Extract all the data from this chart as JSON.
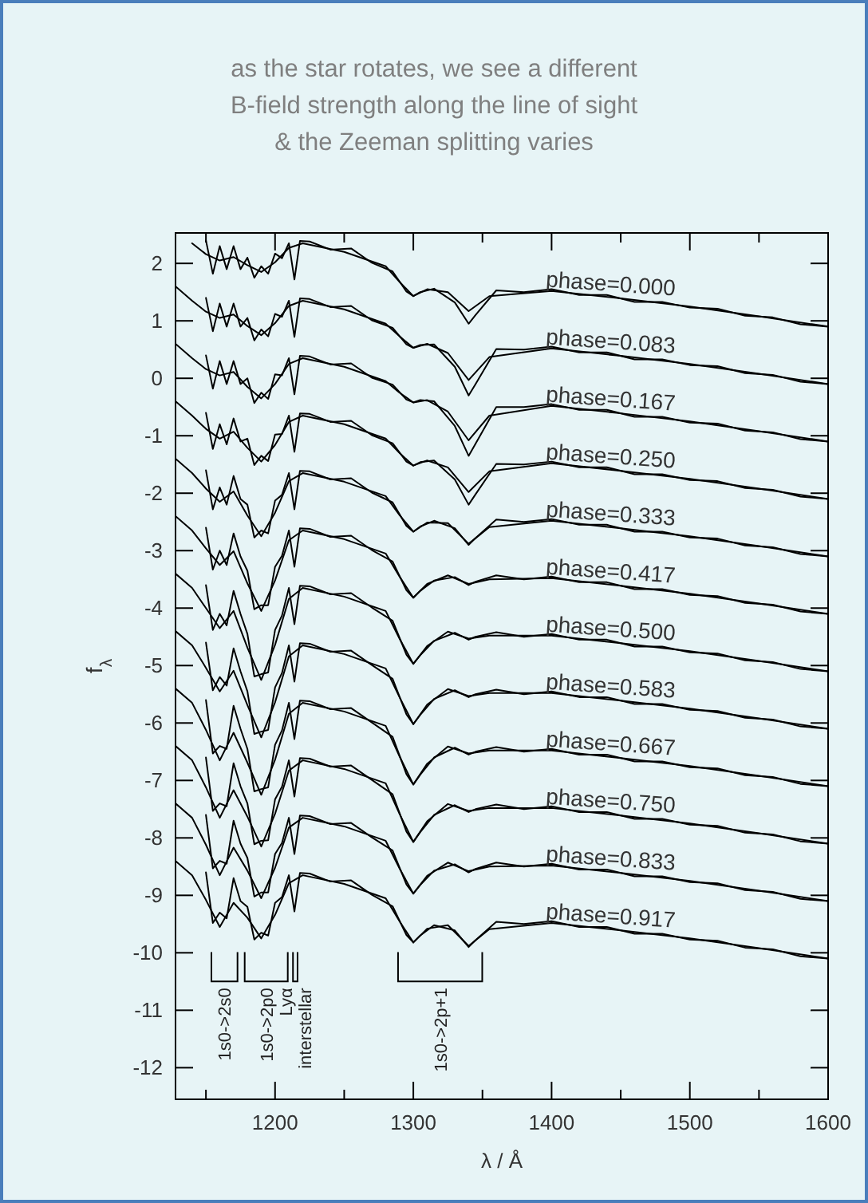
{
  "chart_data": {
    "type": "line",
    "title": "as the star rotates, we see a different\nB-field strength along the line of sight\n& the Zeeman splitting varies",
    "xlabel": "λ / Å",
    "ylabel": "f$_{λ}$",
    "xlim": [
      1128,
      1600
    ],
    "ylim": [
      -12.55,
      2.53
    ],
    "xticks": [
      {
        "value": 1150,
        "label": null
      },
      1200,
      {
        "value": 1250,
        "label": null
      },
      1300,
      {
        "value": 1350,
        "label": null
      },
      1400,
      {
        "value": 1450,
        "label": null
      },
      1500,
      {
        "value": 1550,
        "label": null
      },
      1600
    ],
    "yticks": [
      -12,
      -11,
      -10,
      -9,
      -8,
      -7,
      -6,
      -5,
      -4,
      -3,
      -2,
      -1,
      0,
      1,
      2
    ],
    "x": [
      1150,
      1155,
      1160,
      1165,
      1170,
      1175,
      1180,
      1185,
      1190,
      1195,
      1200,
      1205,
      1210,
      1214,
      1218,
      1225,
      1240,
      1255,
      1270,
      1285,
      1295,
      1300,
      1305,
      1315,
      1330,
      1340,
      1345,
      1360,
      1380,
      1400,
      1420,
      1440,
      1460,
      1480,
      1500,
      1520,
      1540,
      1560,
      1580,
      1600
    ],
    "series": [
      {
        "name": "phase=0.000",
        "color": "#000000",
        "values": [
          2.4,
          1.82,
          2.3,
          1.9,
          2.3,
          1.9,
          2.1,
          1.75,
          1.95,
          1.82,
          2.17,
          2.09,
          2.35,
          1.72,
          2.39,
          2.38,
          2.24,
          2.26,
          2.01,
          1.86,
          1.51,
          1.43,
          1.5,
          1.56,
          1.32,
          0.95,
          1.1,
          1.53,
          1.5,
          1.55,
          1.45,
          1.45,
          1.33,
          1.33,
          1.23,
          1.21,
          1.09,
          1.06,
          0.94,
          0.9
        ]
      },
      {
        "name": "phase=0.083",
        "color": "#000000",
        "values": [
          1.4,
          0.82,
          1.3,
          0.9,
          1.3,
          0.9,
          1.05,
          0.66,
          0.85,
          0.73,
          1.12,
          1.07,
          1.35,
          0.72,
          1.39,
          1.38,
          1.24,
          1.26,
          1.01,
          0.88,
          0.59,
          0.53,
          0.58,
          0.59,
          0.2,
          -0.3,
          -0.1,
          0.51,
          0.5,
          0.55,
          0.45,
          0.45,
          0.33,
          0.33,
          0.23,
          0.21,
          0.09,
          0.06,
          -0.06,
          -0.1
        ]
      },
      {
        "name": "phase=0.167",
        "color": "#000000",
        "values": [
          0.4,
          -0.18,
          0.3,
          -0.1,
          0.3,
          -0.1,
          0,
          -0.43,
          -0.25,
          -0.36,
          0.07,
          0.05,
          0.35,
          -0.28,
          0.39,
          0.38,
          0.24,
          0.26,
          0.01,
          -0.11,
          -0.37,
          -0.42,
          -0.38,
          -0.4,
          -0.83,
          -1.35,
          -1.14,
          -0.5,
          -0.5,
          -0.45,
          -0.55,
          -0.55,
          -0.67,
          -0.67,
          -0.77,
          -0.79,
          -0.91,
          -0.94,
          -1.06,
          -1.1
        ]
      },
      {
        "name": "phase=0.250",
        "color": "#000000",
        "values": [
          -0.6,
          -1.23,
          -0.8,
          -1.15,
          -0.7,
          -1.1,
          -1.05,
          -1.51,
          -1.35,
          -1.44,
          -0.98,
          -0.97,
          -0.65,
          -1.28,
          -0.61,
          -0.62,
          -0.76,
          -0.74,
          -0.99,
          -1.13,
          -1.45,
          -1.52,
          -1.46,
          -1.43,
          -1.76,
          -2.2,
          -2.02,
          -1.49,
          -1.5,
          -1.45,
          -1.55,
          -1.55,
          -1.67,
          -1.67,
          -1.77,
          -1.79,
          -1.91,
          -1.94,
          -2.06,
          -2.1
        ]
      },
      {
        "name": "phase=0.333",
        "color": "#000000",
        "values": [
          -1.6,
          -2.28,
          -1.9,
          -2.2,
          -1.7,
          -2.1,
          -2.2,
          -2.77,
          -2.65,
          -2.7,
          -2.13,
          -2.03,
          -1.65,
          -2.28,
          -1.61,
          -1.62,
          -1.76,
          -1.74,
          -1.99,
          -2.16,
          -2.57,
          -2.67,
          -2.58,
          -2.48,
          -2.61,
          -2.9,
          -2.78,
          -2.46,
          -2.5,
          -2.45,
          -2.55,
          -2.55,
          -2.67,
          -2.67,
          -2.77,
          -2.79,
          -2.91,
          -2.94,
          -3.06,
          -3.1
        ]
      },
      {
        "name": "phase=0.417",
        "color": "#000000",
        "values": [
          -2.6,
          -3.33,
          -3.0,
          -3.25,
          -2.7,
          -3.1,
          -3.35,
          -4.02,
          -3.95,
          -3.95,
          -3.28,
          -3.09,
          -2.65,
          -3.28,
          -2.61,
          -2.62,
          -2.76,
          -2.74,
          -2.99,
          -3.19,
          -3.69,
          -3.82,
          -3.7,
          -3.52,
          -3.46,
          -3.6,
          -3.54,
          -3.43,
          -3.5,
          -3.45,
          -3.55,
          -3.55,
          -3.67,
          -3.67,
          -3.77,
          -3.79,
          -3.91,
          -3.94,
          -4.06,
          -4.1
        ]
      },
      {
        "name": "phase=0.500",
        "color": "#000000",
        "values": [
          -3.6,
          -4.38,
          -4.1,
          -4.3,
          -3.7,
          -4.1,
          -4.45,
          -5.19,
          -5.15,
          -5.12,
          -4.38,
          -4.13,
          -3.65,
          -4.28,
          -3.61,
          -3.62,
          -3.76,
          -3.74,
          -3.99,
          -4.22,
          -4.81,
          -4.97,
          -4.82,
          -4.57,
          -4.43,
          -4.55,
          -4.5,
          -4.42,
          -4.5,
          -4.45,
          -4.55,
          -4.55,
          -4.67,
          -4.67,
          -4.77,
          -4.79,
          -4.91,
          -4.94,
          -5.06,
          -5.1
        ]
      },
      {
        "name": "phase=0.583",
        "color": "#000000",
        "values": [
          -4.6,
          -5.43,
          -5.2,
          -5.35,
          -4.7,
          -5.1,
          -5.45,
          -6.19,
          -6.15,
          -6.12,
          -5.38,
          -5.13,
          -4.65,
          -5.28,
          -4.61,
          -4.62,
          -4.76,
          -4.74,
          -4.99,
          -5.23,
          -5.85,
          -6.02,
          -5.86,
          -5.58,
          -5.43,
          -5.55,
          -5.5,
          -5.42,
          -5.5,
          -5.45,
          -5.55,
          -5.55,
          -5.67,
          -5.67,
          -5.77,
          -5.79,
          -5.91,
          -5.94,
          -6.06,
          -6.1
        ]
      },
      {
        "name": "phase=0.667",
        "color": "#000000",
        "values": [
          -5.6,
          -6.53,
          -6.4,
          -6.45,
          -5.7,
          -6.1,
          -6.45,
          -7.19,
          -7.15,
          -7.12,
          -6.38,
          -6.13,
          -5.65,
          -6.28,
          -5.61,
          -5.62,
          -5.76,
          -5.74,
          -5.99,
          -6.24,
          -6.89,
          -7.07,
          -6.9,
          -6.6,
          -6.43,
          -6.55,
          -6.5,
          -6.42,
          -6.5,
          -6.45,
          -6.55,
          -6.55,
          -6.67,
          -6.67,
          -6.77,
          -6.79,
          -6.91,
          -6.94,
          -7.06,
          -7.1
        ]
      },
      {
        "name": "phase=0.750",
        "color": "#000000",
        "values": [
          -6.6,
          -7.53,
          -7.4,
          -7.45,
          -6.7,
          -7.1,
          -7.4,
          -8.11,
          -8.05,
          -8.04,
          -7.33,
          -7.11,
          -6.65,
          -7.28,
          -6.61,
          -6.62,
          -6.76,
          -6.74,
          -6.99,
          -7.24,
          -7.89,
          -8.07,
          -7.9,
          -7.6,
          -7.43,
          -7.55,
          -7.5,
          -7.42,
          -7.5,
          -7.45,
          -7.55,
          -7.55,
          -7.67,
          -7.67,
          -7.77,
          -7.79,
          -7.91,
          -7.94,
          -8.06,
          -8.1
        ]
      },
      {
        "name": "phase=0.833",
        "color": "#000000",
        "values": [
          -7.6,
          -8.53,
          -8.4,
          -8.45,
          -7.7,
          -8.1,
          -8.35,
          -9.02,
          -8.95,
          -8.95,
          -8.28,
          -8.09,
          -7.65,
          -8.28,
          -7.61,
          -7.62,
          -7.76,
          -7.74,
          -7.99,
          -8.22,
          -8.81,
          -8.97,
          -8.82,
          -8.57,
          -8.46,
          -8.6,
          -8.54,
          -8.43,
          -8.5,
          -8.45,
          -8.55,
          -8.55,
          -8.67,
          -8.67,
          -8.77,
          -8.79,
          -8.91,
          -8.94,
          -9.06,
          -9.1
        ]
      },
      {
        "name": "phase=0.917",
        "color": "#000000",
        "values": [
          -8.6,
          -9.48,
          -9.3,
          -9.4,
          -8.7,
          -9.1,
          -9.2,
          -9.77,
          -9.65,
          -9.7,
          -9.13,
          -9.03,
          -8.65,
          -9.28,
          -8.61,
          -8.62,
          -8.76,
          -8.74,
          -8.99,
          -9.19,
          -9.69,
          -9.82,
          -9.7,
          -9.52,
          -9.61,
          -9.9,
          -9.78,
          -9.46,
          -9.5,
          -9.45,
          -9.55,
          -9.55,
          -9.67,
          -9.67,
          -9.77,
          -9.79,
          -9.91,
          -9.94,
          -10.06,
          -10.1
        ]
      },
      {
        "color": "#000000",
        "x": [
          1140,
          1150,
          1160,
          1170,
          1180,
          1190,
          1200,
          1210,
          1220,
          1250,
          1280,
          1290,
          1300,
          1310,
          1325,
          1340,
          1355,
          1400,
          1450,
          1500,
          1550,
          1600
        ],
        "values": [
          2.35,
          2.16,
          2.05,
          2.11,
          1.97,
          1.85,
          2.02,
          2.27,
          2.35,
          2.2,
          1.95,
          1.68,
          1.43,
          1.55,
          1.5,
          1.17,
          1.43,
          1.52,
          1.39,
          1.25,
          1.08,
          0.9
        ]
      },
      {
        "color": "#000000",
        "x": [
          1128,
          1140,
          1150,
          1160,
          1170,
          1180,
          1190,
          1200,
          1210,
          1220,
          1250,
          1280,
          1290,
          1300,
          1310,
          1325,
          1340,
          1355,
          1400,
          1450,
          1500,
          1550,
          1600
        ],
        "values": [
          1.6,
          1.35,
          1.16,
          1.05,
          1.11,
          0.91,
          0.75,
          0.96,
          1.26,
          1.35,
          1.2,
          0.95,
          0.73,
          0.53,
          0.6,
          0.44,
          -0.03,
          0.37,
          0.52,
          0.39,
          0.25,
          0.08,
          -0.1
        ]
      },
      {
        "color": "#000000",
        "x": [
          1128,
          1140,
          1150,
          1160,
          1170,
          1180,
          1190,
          1200,
          1210,
          1220,
          1250,
          1280,
          1290,
          1300,
          1310,
          1325,
          1340,
          1355,
          1400,
          1450,
          1500,
          1550,
          1600
        ],
        "values": [
          0.6,
          0.35,
          0.16,
          0.05,
          0.11,
          -0.15,
          -0.35,
          -0.1,
          0.25,
          0.35,
          0.2,
          -0.05,
          -0.25,
          -0.42,
          -0.38,
          -0.58,
          -1.08,
          -0.65,
          -0.48,
          -0.61,
          -0.75,
          -0.92,
          -1.1
        ]
      },
      {
        "color": "#000000",
        "x": [
          1128,
          1140,
          1150,
          1160,
          1170,
          1180,
          1190,
          1200,
          1210,
          1220,
          1250,
          1280,
          1290,
          1300,
          1310,
          1325,
          1340,
          1355,
          1400,
          1450,
          1500,
          1550,
          1600
        ],
        "values": [
          -0.4,
          -0.65,
          -0.88,
          -1.05,
          -0.93,
          -1.21,
          -1.45,
          -1.16,
          -0.76,
          -0.65,
          -0.8,
          -1.05,
          -1.3,
          -1.52,
          -1.43,
          -1.55,
          -1.98,
          -1.62,
          -1.48,
          -1.61,
          -1.75,
          -1.92,
          -2.1
        ]
      },
      {
        "color": "#000000",
        "x": [
          1128,
          1140,
          1150,
          1160,
          1170,
          1180,
          1190,
          1200,
          1210,
          1220,
          1250,
          1280,
          1290,
          1300,
          1310,
          1325,
          1340,
          1355,
          1400,
          1450,
          1500,
          1550,
          1600
        ],
        "values": [
          -1.4,
          -1.65,
          -1.92,
          -2.15,
          -1.97,
          -2.39,
          -2.75,
          -2.34,
          -1.79,
          -1.65,
          -1.8,
          -2.05,
          -2.38,
          -2.67,
          -2.51,
          -2.52,
          -2.88,
          -2.59,
          -2.48,
          -2.61,
          -2.75,
          -2.92,
          -3.1
        ]
      },
      {
        "color": "#000000",
        "x": [
          1128,
          1140,
          1150,
          1160,
          1170,
          1180,
          1190,
          1200,
          1210,
          1220,
          1250,
          1280,
          1290,
          1300,
          1310,
          1325,
          1340,
          1355,
          1400,
          1450,
          1500,
          1550,
          1600
        ],
        "values": [
          -2.4,
          -2.65,
          -2.96,
          -3.25,
          -3.01,
          -3.57,
          -4.05,
          -3.52,
          -2.82,
          -2.65,
          -2.8,
          -3.05,
          -3.45,
          -3.82,
          -3.58,
          -3.43,
          -3.58,
          -3.5,
          -3.48,
          -3.61,
          -3.75,
          -3.92,
          -4.1
        ]
      },
      {
        "color": "#000000",
        "x": [
          1128,
          1140,
          1150,
          1160,
          1170,
          1180,
          1190,
          1200,
          1210,
          1220,
          1250,
          1280,
          1290,
          1300,
          1310,
          1325,
          1340,
          1355,
          1400,
          1450,
          1500,
          1550,
          1600
        ],
        "values": [
          -3.4,
          -3.65,
          -4.0,
          -4.35,
          -4.05,
          -4.69,
          -5.25,
          -4.64,
          -3.84,
          -3.65,
          -3.8,
          -4.05,
          -4.53,
          -4.97,
          -4.66,
          -4.41,
          -4.53,
          -4.48,
          -4.48,
          -4.61,
          -4.75,
          -4.92,
          -5.1
        ]
      },
      {
        "color": "#000000",
        "x": [
          1128,
          1140,
          1150,
          1160,
          1170,
          1180,
          1190,
          1200,
          1210,
          1220,
          1250,
          1280,
          1290,
          1300,
          1310,
          1325,
          1340,
          1355,
          1400,
          1450,
          1500,
          1550,
          1600
        ],
        "values": [
          -4.4,
          -4.65,
          -5.04,
          -5.45,
          -5.09,
          -5.69,
          -6.25,
          -5.64,
          -4.84,
          -4.65,
          -4.8,
          -5.05,
          -5.55,
          -6.02,
          -5.68,
          -5.41,
          -5.53,
          -5.48,
          -5.48,
          -5.61,
          -5.75,
          -5.92,
          -6.1
        ]
      },
      {
        "color": "#000000",
        "x": [
          1128,
          1140,
          1150,
          1160,
          1170,
          1180,
          1190,
          1200,
          1210,
          1220,
          1250,
          1280,
          1290,
          1300,
          1310,
          1325,
          1340,
          1355,
          1400,
          1450,
          1500,
          1550,
          1600
        ],
        "values": [
          -5.4,
          -5.65,
          -6.12,
          -6.65,
          -6.17,
          -6.69,
          -7.25,
          -6.64,
          -5.84,
          -5.65,
          -5.8,
          -6.05,
          -6.58,
          -7.07,
          -6.71,
          -6.41,
          -6.53,
          -6.48,
          -6.48,
          -6.61,
          -6.75,
          -6.92,
          -7.1
        ]
      },
      {
        "color": "#000000",
        "x": [
          1128,
          1140,
          1150,
          1160,
          1170,
          1180,
          1190,
          1200,
          1210,
          1220,
          1250,
          1280,
          1290,
          1300,
          1310,
          1325,
          1340,
          1355,
          1400,
          1450,
          1500,
          1550,
          1600
        ],
        "values": [
          -6.4,
          -6.65,
          -7.12,
          -7.65,
          -7.17,
          -7.63,
          -8.15,
          -7.58,
          -6.83,
          -6.65,
          -6.8,
          -7.05,
          -7.58,
          -8.07,
          -7.71,
          -7.41,
          -7.53,
          -7.48,
          -7.48,
          -7.61,
          -7.75,
          -7.92,
          -8.1
        ]
      },
      {
        "color": "#000000",
        "x": [
          1128,
          1140,
          1150,
          1160,
          1170,
          1180,
          1190,
          1200,
          1210,
          1220,
          1250,
          1280,
          1290,
          1300,
          1310,
          1325,
          1340,
          1355,
          1400,
          1450,
          1500,
          1550,
          1600
        ],
        "values": [
          -7.4,
          -7.65,
          -8.12,
          -8.65,
          -8.17,
          -8.57,
          -9.05,
          -8.52,
          -7.82,
          -7.65,
          -7.8,
          -8.05,
          -8.53,
          -8.97,
          -8.66,
          -8.43,
          -8.58,
          -8.5,
          -8.48,
          -8.61,
          -8.75,
          -8.92,
          -9.1
        ]
      },
      {
        "color": "#000000",
        "x": [
          1128,
          1140,
          1150,
          1160,
          1170,
          1180,
          1190,
          1200,
          1210,
          1220,
          1250,
          1280,
          1290,
          1300,
          1310,
          1325,
          1340,
          1355,
          1400,
          1450,
          1500,
          1550,
          1600
        ],
        "values": [
          -8.4,
          -8.65,
          -9.08,
          -9.55,
          -9.13,
          -9.39,
          -9.75,
          -9.34,
          -8.79,
          -8.65,
          -8.8,
          -9.05,
          -9.45,
          -9.82,
          -9.58,
          -9.52,
          -9.88,
          -9.59,
          -9.48,
          -9.61,
          -9.75,
          -9.92,
          -10.1
        ]
      }
    ],
    "annotations": [
      "1s0->2s0",
      "1s0->2p0",
      "Lyα\ninterstellar",
      "1s0->2p+1"
    ]
  }
}
